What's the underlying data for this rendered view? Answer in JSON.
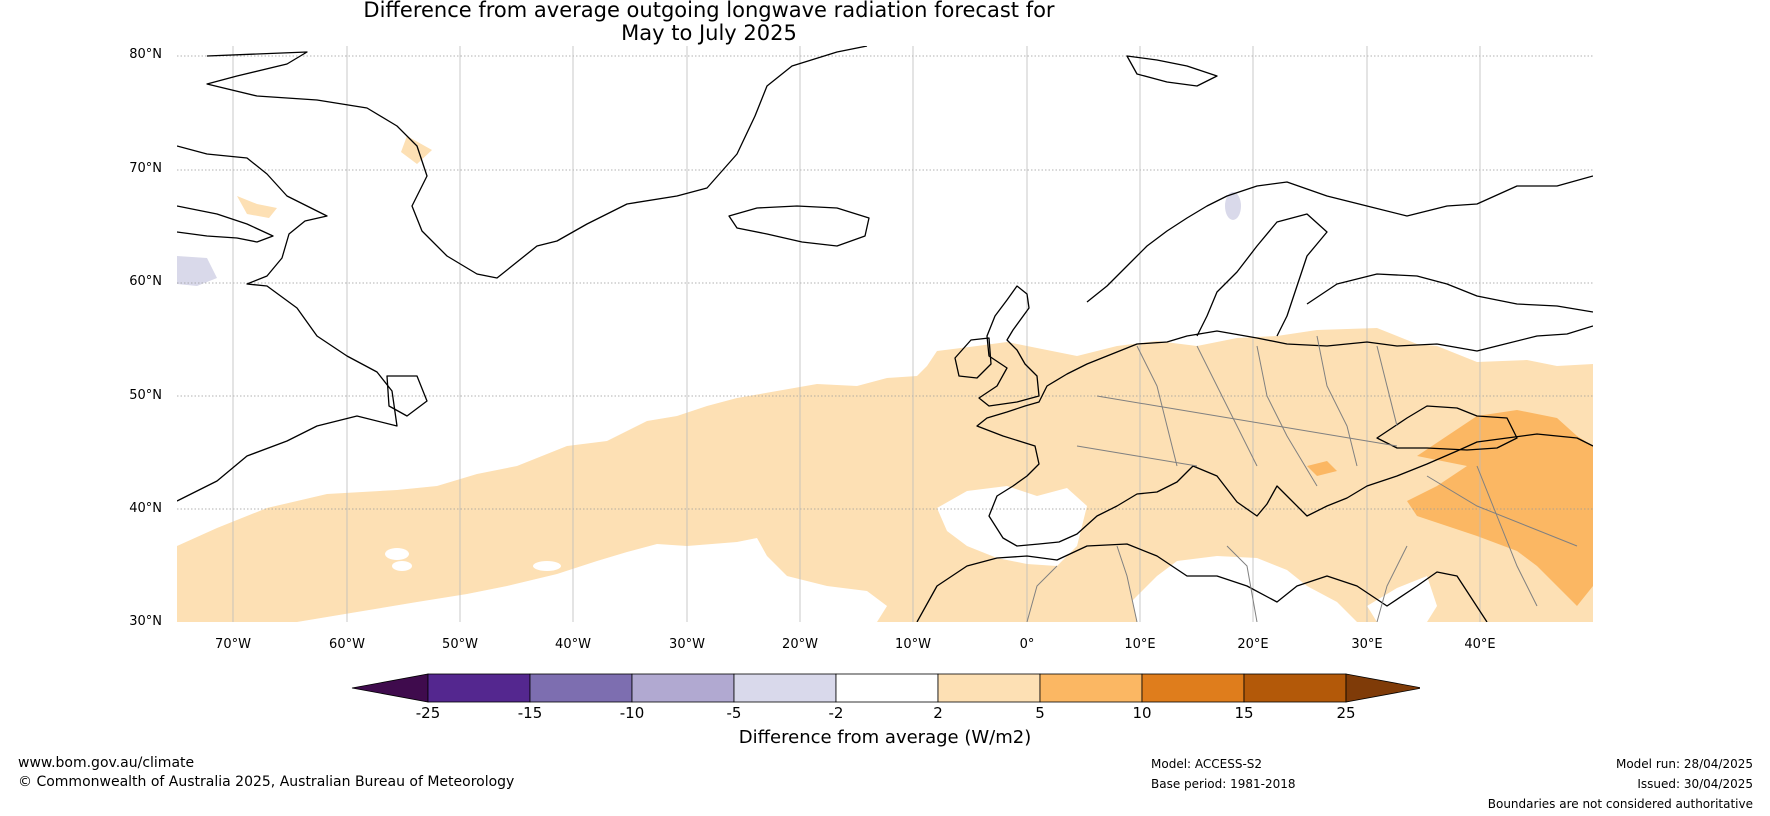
{
  "title_line1": "Difference from average outgoing longwave radiation forecast for",
  "title_line2": "May to July 2025",
  "map": {
    "lat_labels": [
      "80°N",
      "70°N",
      "60°N",
      "50°N",
      "40°N",
      "30°N"
    ],
    "lon_labels": [
      "70°W",
      "60°W",
      "50°W",
      "40°W",
      "30°W",
      "20°W",
      "10°W",
      "0°",
      "10°E",
      "20°E",
      "30°E",
      "40°E"
    ],
    "extent": {
      "lon": [
        -75,
        50
      ],
      "lat": [
        30,
        80
      ]
    },
    "gridlines": true,
    "colors": {
      "land_outline": "#000000",
      "border": "#808080",
      "pos_2_5": "#fde0b4",
      "pos_5_10": "#fbb763",
      "neg_2_5": "#d9d9ea"
    }
  },
  "colorbar": {
    "ticks": [
      "-25",
      "-15",
      "-10",
      "-5",
      "-2",
      "2",
      "5",
      "10",
      "15",
      "25"
    ],
    "colors": [
      "#3f0b4d",
      "#54278f",
      "#7d6eb0",
      "#b1a9d1",
      "#d9d9eb",
      "#ffffff",
      "#fde0b4",
      "#fbb763",
      "#df7d1c",
      "#b35909",
      "#7f3b08"
    ],
    "label": "Difference from average (W/m2)"
  },
  "footer": {
    "url": "www.bom.gov.au/climate",
    "copyright": "© Commonwealth of Australia 2025, Australian Bureau of Meteorology",
    "model": "Model: ACCESS-S2",
    "base_period": "Base period: 1981-2018",
    "model_run": "Model run: 28/04/2025",
    "issued": "Issued: 30/04/2025",
    "disclaimer": "Boundaries are not considered authoritative"
  }
}
